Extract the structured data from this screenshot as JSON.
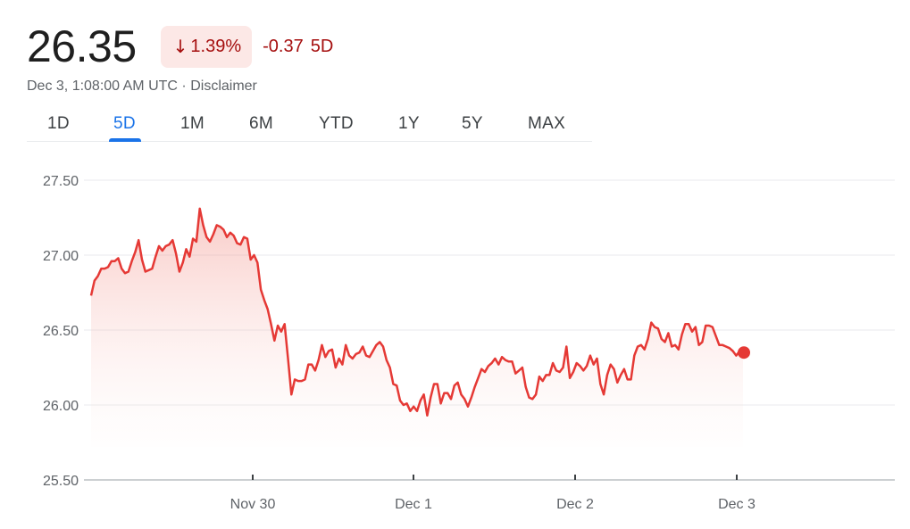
{
  "quote": {
    "price": "26.35",
    "percent_change": "1.39%",
    "change": "-0.37",
    "period": "5D",
    "timestamp": "Dec 3, 1:08:00 AM UTC",
    "separator": "·",
    "disclaimer": "Disclaimer",
    "direction_icon": "arrow-down-icon"
  },
  "tabs": [
    {
      "label": "1D",
      "active": false
    },
    {
      "label": "5D",
      "active": true
    },
    {
      "label": "1M",
      "active": false
    },
    {
      "label": "6M",
      "active": false
    },
    {
      "label": "YTD",
      "active": false
    },
    {
      "label": "1Y",
      "active": false
    },
    {
      "label": "5Y",
      "active": false
    },
    {
      "label": "MAX",
      "active": false
    }
  ],
  "colors": {
    "negative": "#a50e0e",
    "negative_badge_bg": "#fce8e6",
    "line": "#e53935",
    "accent": "#1a73e8"
  },
  "chart_data": {
    "type": "area",
    "xlabel": "",
    "ylabel": "",
    "ylim": [
      25.5,
      27.5
    ],
    "yticks": [
      "27.50",
      "27.00",
      "26.50",
      "26.00",
      "25.50"
    ],
    "xticks": [
      "Nov 30",
      "Dec 1",
      "Dec 2",
      "Dec 3"
    ],
    "grid": true,
    "x_range": [
      "Nov 29",
      "Dec 3"
    ],
    "series": [
      {
        "values": [
          26.73,
          26.83,
          26.86,
          26.91,
          26.91,
          26.92,
          26.96,
          26.96,
          26.98,
          26.91,
          26.88,
          26.89,
          26.96,
          27.02,
          27.1,
          26.97,
          26.89,
          26.9,
          26.91,
          26.99,
          27.06,
          27.03,
          27.06,
          27.07,
          27.1,
          27.01,
          26.89,
          26.95,
          27.04,
          26.99,
          27.11,
          27.09,
          27.31,
          27.2,
          27.12,
          27.09,
          27.14,
          27.2,
          27.19,
          27.17,
          27.12,
          27.15,
          27.13,
          27.08,
          27.07,
          27.12,
          27.11,
          26.97,
          27.0,
          26.95,
          26.77,
          26.7,
          26.64,
          26.54,
          26.43,
          26.53,
          26.49,
          26.54,
          26.31,
          26.07,
          26.17,
          26.16,
          26.16,
          26.17,
          26.27,
          26.27,
          26.23,
          26.3,
          26.4,
          26.32,
          26.36,
          26.37,
          26.25,
          26.31,
          26.27,
          26.4,
          26.33,
          26.31,
          26.34,
          26.35,
          26.39,
          26.33,
          26.32,
          26.36,
          26.4,
          26.42,
          26.39,
          26.3,
          26.25,
          26.14,
          26.13,
          26.03,
          26.0,
          26.01,
          25.96,
          25.99,
          25.96,
          26.03,
          26.07,
          25.93,
          26.05,
          26.14,
          26.14,
          26.01,
          26.08,
          26.08,
          26.04,
          26.13,
          26.15,
          26.07,
          26.04,
          25.99,
          26.05,
          26.12,
          26.18,
          26.24,
          26.22,
          26.26,
          26.28,
          26.31,
          26.27,
          26.32,
          26.3,
          26.29,
          26.29,
          26.21,
          26.23,
          26.25,
          26.12,
          26.05,
          26.04,
          26.07,
          26.19,
          26.16,
          26.2,
          26.2,
          26.28,
          26.23,
          26.22,
          26.25,
          26.39,
          26.18,
          26.22,
          26.28,
          26.26,
          26.23,
          26.26,
          26.33,
          26.27,
          26.31,
          26.14,
          26.07,
          26.2,
          26.27,
          26.24,
          26.15,
          26.2,
          26.24,
          26.17,
          26.17,
          26.33,
          26.39,
          26.4,
          26.37,
          26.44,
          26.55,
          26.52,
          26.51,
          26.44,
          26.42,
          26.48,
          26.39,
          26.4,
          26.37,
          26.47,
          26.54,
          26.54,
          26.49,
          26.52,
          26.4,
          26.42,
          26.53,
          26.53,
          26.52,
          26.46,
          26.4,
          26.4,
          26.39,
          26.38,
          26.36,
          26.33,
          26.36,
          26.35
        ]
      }
    ],
    "last_value": 26.35
  }
}
